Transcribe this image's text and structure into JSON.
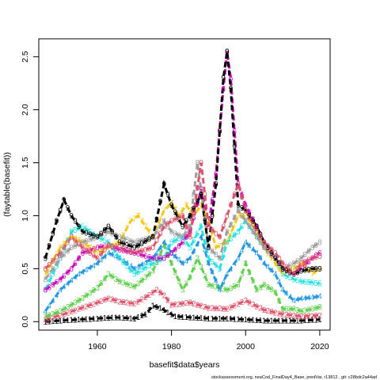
{
  "chart_data": {
    "type": "line",
    "xlabel": "basefit$data$years",
    "ylabel": "(faytable(basefit))",
    "xlim": [
      1944.2,
      2022.8
    ],
    "ylim": [
      -0.08,
      2.67
    ],
    "x_ticks": [
      1960,
      1980,
      2000,
      2020
    ],
    "x_tick_labels": [
      "1960",
      "1980",
      "2000",
      "2020"
    ],
    "y_ticks": [
      0,
      0.5,
      1,
      1.5,
      2,
      2.5
    ],
    "y_tick_labels": [
      "0.0",
      "0.5",
      "1.0",
      "1.5",
      "2.0",
      "2.5"
    ],
    "footer": "stockassessment.org, neaCod_FinalDay4_Base, predVar, r13812 , git: c28bdc2a44ad",
    "series": [
      {
        "label": "1",
        "color": "#000000",
        "x": [
          1946,
          1950,
          1955,
          1960,
          1965,
          1970,
          1973,
          1975,
          1977,
          1979,
          1981,
          1985,
          1990,
          1995,
          2000,
          2005,
          2010,
          2015,
          2020
        ],
        "y": [
          0.0,
          0.01,
          0.02,
          0.03,
          0.04,
          0.03,
          0.07,
          0.15,
          0.13,
          0.09,
          0.05,
          0.04,
          0.03,
          0.03,
          0.02,
          0.01,
          0.01,
          0.01,
          0.02
        ]
      },
      {
        "label": "2",
        "color": "#df536b",
        "x": [
          1946,
          1950,
          1955,
          1960,
          1963,
          1966,
          1970,
          1973,
          1976,
          1978,
          1980,
          1985,
          1990,
          1995,
          2000,
          2005,
          2010,
          2015,
          2020
        ],
        "y": [
          0.02,
          0.06,
          0.12,
          0.18,
          0.22,
          0.19,
          0.17,
          0.23,
          0.3,
          0.25,
          0.16,
          0.18,
          0.13,
          0.12,
          0.2,
          0.11,
          0.07,
          0.05,
          0.06
        ]
      },
      {
        "label": "3",
        "color": "#61d04f",
        "x": [
          1946,
          1950,
          1955,
          1960,
          1963,
          1966,
          1970,
          1975,
          1978,
          1980,
          1983,
          1985,
          1987,
          1990,
          1995,
          1998,
          2000,
          2003,
          2005,
          2008,
          2010,
          2013,
          2015,
          2018,
          2020
        ],
        "y": [
          0.05,
          0.1,
          0.2,
          0.32,
          0.45,
          0.38,
          0.33,
          0.48,
          0.72,
          0.55,
          0.3,
          0.42,
          0.6,
          0.35,
          0.3,
          0.35,
          0.55,
          0.3,
          0.35,
          0.28,
          0.12,
          0.12,
          0.1,
          0.12,
          0.14
        ]
      },
      {
        "label": "4",
        "color": "#2297e6",
        "x": [
          1946,
          1950,
          1955,
          1960,
          1963,
          1966,
          1970,
          1975,
          1978,
          1980,
          1983,
          1985,
          1988,
          1990,
          1993,
          1995,
          1998,
          2000,
          2003,
          2005,
          2008,
          2010,
          2013,
          2015,
          2018,
          2020
        ],
        "y": [
          0.1,
          0.3,
          0.45,
          0.55,
          0.65,
          0.6,
          0.5,
          0.6,
          0.75,
          0.65,
          0.55,
          0.6,
          0.8,
          0.55,
          0.3,
          0.45,
          0.6,
          0.75,
          0.65,
          0.55,
          0.45,
          0.3,
          0.2,
          0.22,
          0.23,
          0.24
        ]
      },
      {
        "label": "5",
        "color": "#28e2e5",
        "x": [
          1946,
          1950,
          1953,
          1956,
          1960,
          1963,
          1966,
          1970,
          1975,
          1978,
          1980,
          1983,
          1985,
          1988,
          1990,
          1993,
          1995,
          1998,
          2000,
          2003,
          2005,
          2008,
          2010,
          2013,
          2015,
          2018,
          2020
        ],
        "y": [
          0.3,
          0.6,
          0.85,
          0.9,
          0.8,
          0.75,
          0.6,
          0.45,
          0.55,
          0.6,
          0.75,
          0.8,
          0.7,
          0.9,
          0.6,
          0.5,
          0.75,
          0.85,
          0.95,
          0.8,
          0.7,
          0.6,
          0.45,
          0.4,
          0.38,
          0.37,
          0.36
        ]
      },
      {
        "label": "6",
        "color": "#cd0bbc",
        "x": [
          1946,
          1950,
          1953,
          1956,
          1960,
          1963,
          1966,
          1970,
          1975,
          1978,
          1980,
          1983,
          1985,
          1988,
          1990,
          1992,
          1994,
          1995,
          1996,
          1998,
          2000,
          2003,
          2005,
          2008,
          2010,
          2013,
          2015,
          2018,
          2020
        ],
        "y": [
          0.3,
          0.4,
          0.5,
          0.65,
          0.7,
          0.72,
          0.68,
          0.65,
          0.6,
          0.6,
          0.65,
          0.75,
          0.85,
          1.25,
          0.9,
          1.4,
          2.2,
          2.55,
          2.3,
          1.3,
          1.1,
          0.9,
          0.7,
          0.6,
          0.5,
          0.45,
          0.5,
          0.6,
          0.65
        ]
      },
      {
        "label": "7",
        "color": "#f5c710",
        "x": [
          1946,
          1950,
          1953,
          1956,
          1960,
          1963,
          1966,
          1969,
          1971,
          1973,
          1975,
          1978,
          1980,
          1982,
          1984,
          1986,
          1988,
          1990,
          1992,
          1995,
          1998,
          2000,
          2003,
          2005,
          2008,
          2010,
          2013,
          2015,
          2018,
          2020
        ],
        "y": [
          0.45,
          0.7,
          0.8,
          0.75,
          0.65,
          0.7,
          0.75,
          0.95,
          1.0,
          0.9,
          0.8,
          1.05,
          1.12,
          1.0,
          1.1,
          1.0,
          1.1,
          0.95,
          0.7,
          0.75,
          1.0,
          1.0,
          0.85,
          0.7,
          0.55,
          0.45,
          0.5,
          0.55,
          0.45,
          0.5
        ]
      },
      {
        "label": "8",
        "color": "#9e9e9e",
        "x": [
          1946,
          1950,
          1953,
          1956,
          1960,
          1963,
          1966,
          1970,
          1975,
          1978,
          1980,
          1983,
          1985,
          1987,
          1990,
          1993,
          1995,
          1998,
          2000,
          2003,
          2005,
          2008,
          2010,
          2013,
          2015,
          2018,
          2020
        ],
        "y": [
          0.4,
          0.6,
          0.7,
          0.75,
          0.8,
          0.85,
          0.8,
          0.75,
          0.8,
          0.95,
          0.85,
          0.8,
          0.9,
          1.5,
          0.7,
          0.6,
          0.85,
          1.05,
          0.95,
          0.8,
          0.7,
          0.6,
          0.5,
          0.55,
          0.6,
          0.7,
          0.75
        ]
      },
      {
        "label": "9",
        "color": "#000000",
        "x": [
          1946,
          1949,
          1951,
          1953,
          1956,
          1960,
          1963,
          1966,
          1970,
          1975,
          1978,
          1980,
          1983,
          1985,
          1988,
          1990,
          1992,
          1994,
          1995,
          1996,
          1998,
          2000,
          2003,
          2005,
          2008,
          2010,
          2013,
          2015,
          2018,
          2020
        ],
        "y": [
          0.6,
          0.95,
          1.15,
          1.0,
          0.85,
          0.8,
          0.9,
          0.75,
          0.7,
          0.8,
          1.3,
          1.1,
          0.9,
          1.0,
          1.2,
          0.7,
          1.3,
          2.3,
          2.55,
          2.2,
          1.1,
          1.05,
          0.9,
          0.75,
          0.6,
          0.5,
          0.45,
          0.48,
          0.5,
          0.5
        ]
      },
      {
        "label": "0",
        "color": "#df536b",
        "x": [
          1946,
          1950,
          1953,
          1956,
          1960,
          1963,
          1966,
          1970,
          1975,
          1978,
          1980,
          1983,
          1985,
          1988,
          1990,
          1993,
          1995,
          1998,
          2000,
          2003,
          2005,
          2008,
          2010,
          2013,
          2015,
          2018,
          2020
        ],
        "y": [
          0.5,
          0.65,
          0.8,
          0.7,
          0.6,
          0.72,
          0.7,
          0.65,
          0.7,
          0.9,
          0.95,
          1.0,
          0.8,
          1.5,
          0.9,
          0.8,
          1.0,
          1.3,
          1.05,
          0.85,
          0.75,
          0.65,
          0.55,
          0.45,
          0.55,
          0.6,
          0.62
        ]
      }
    ]
  }
}
